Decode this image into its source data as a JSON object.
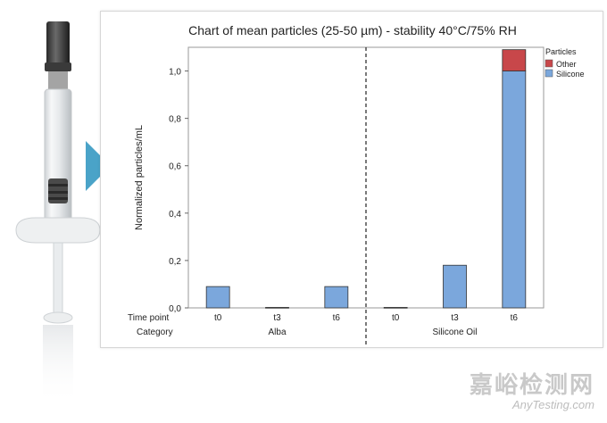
{
  "chart_data": {
    "type": "bar",
    "stacked": true,
    "title": "Chart of mean particles (25-50 µm) - stability 40°C/75% RH",
    "ylabel": "Normalized particles/mL",
    "ylim": [
      0,
      1.1
    ],
    "yticks": [
      "0,0",
      "0,2",
      "0,4",
      "0,6",
      "0,8",
      "1,0"
    ],
    "ytick_values": [
      0,
      0.2,
      0.4,
      0.6,
      0.8,
      1.0
    ],
    "row_labels": {
      "time": "Time point",
      "category": "Category"
    },
    "groups": [
      {
        "name": "Alba",
        "categories": [
          "t0",
          "t3",
          "t6"
        ]
      },
      {
        "name": "Silicone Oil",
        "categories": [
          "t0",
          "t3",
          "t6"
        ]
      }
    ],
    "legend": {
      "title": "Particles",
      "position": "top-right",
      "entries": [
        {
          "name": "Other",
          "color": "#c8474a"
        },
        {
          "name": "Silicone",
          "color": "#7ba7dc"
        }
      ]
    },
    "series": [
      {
        "name": "Silicone",
        "values": [
          0.09,
          0.002,
          0.09,
          0.002,
          0.18,
          1.0
        ]
      },
      {
        "name": "Other",
        "values": [
          0,
          0,
          0,
          0,
          0,
          0.09
        ]
      }
    ]
  },
  "watermark": {
    "cn": "嘉峪检测网",
    "en": "AnyTesting.com"
  }
}
